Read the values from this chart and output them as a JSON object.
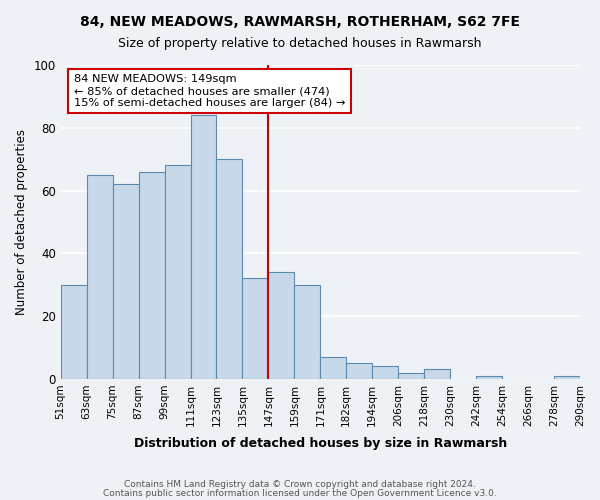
{
  "title": "84, NEW MEADOWS, RAWMARSH, ROTHERHAM, S62 7FE",
  "subtitle": "Size of property relative to detached houses in Rawmarsh",
  "xlabel": "Distribution of detached houses by size in Rawmarsh",
  "ylabel": "Number of detached properties",
  "bin_labels": [
    "51sqm",
    "63sqm",
    "75sqm",
    "87sqm",
    "99sqm",
    "111sqm",
    "123sqm",
    "135sqm",
    "147sqm",
    "159sqm",
    "171sqm",
    "182sqm",
    "194sqm",
    "206sqm",
    "218sqm",
    "230sqm",
    "242sqm",
    "254sqm",
    "266sqm",
    "278sqm",
    "290sqm"
  ],
  "bar_heights": [
    30,
    65,
    62,
    66,
    68,
    84,
    70,
    32,
    34,
    30,
    7,
    5,
    4,
    2,
    3,
    0,
    1,
    0,
    0,
    1
  ],
  "bar_color": "#c8d8e8",
  "bar_edge_color": "#5a8ab0",
  "vline_color": "#cc0000",
  "annotation_text": "84 NEW MEADOWS: 149sqm\n← 85% of detached houses are smaller (474)\n15% of semi-detached houses are larger (84) →",
  "annotation_box_color": "#ffffff",
  "annotation_box_edge": "#cc0000",
  "ylim": [
    0,
    100
  ],
  "yticks": [
    0,
    20,
    40,
    60,
    80,
    100
  ],
  "footer1": "Contains HM Land Registry data © Crown copyright and database right 2024.",
  "footer2": "Contains public sector information licensed under the Open Government Licence v3.0.",
  "bg_color": "#eef2f7"
}
